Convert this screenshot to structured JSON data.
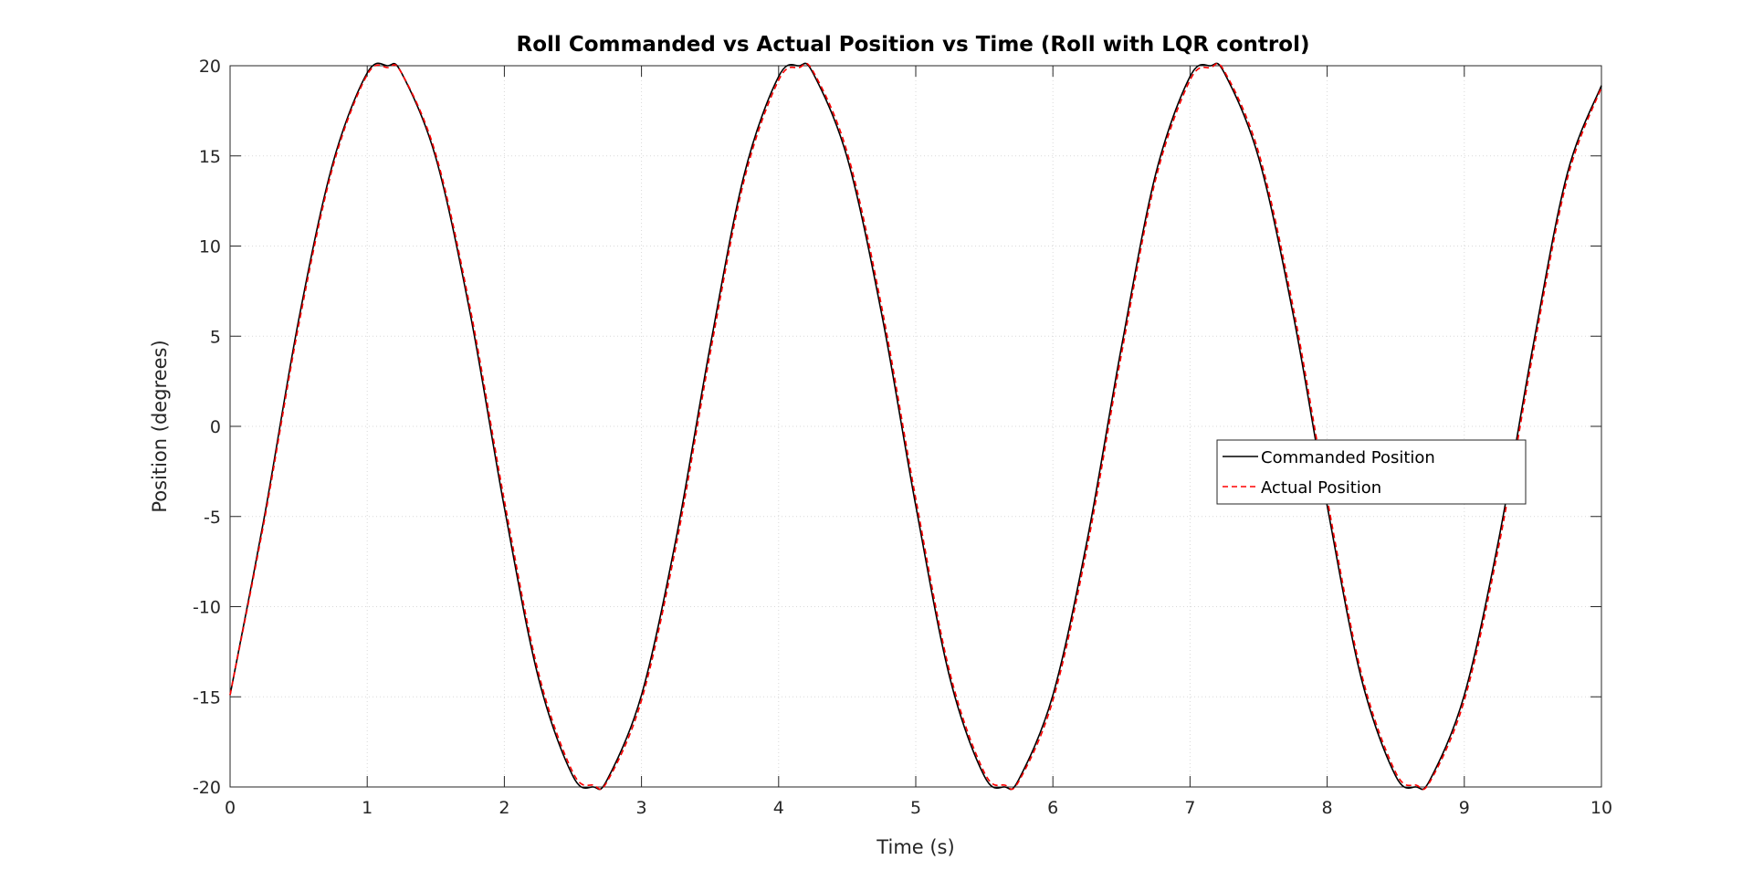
{
  "chart_data": {
    "type": "line",
    "title": "Roll Commanded vs Actual Position vs Time (Roll with LQR control)",
    "xlabel": "Time (s)",
    "ylabel": "Position (degrees)",
    "xlim": [
      0,
      10
    ],
    "ylim": [
      -20,
      20
    ],
    "xticks": [
      0,
      1,
      2,
      3,
      4,
      5,
      6,
      7,
      8,
      9,
      10
    ],
    "yticks": [
      -20,
      -15,
      -10,
      -5,
      0,
      5,
      10,
      15,
      20
    ],
    "xtick_labels": [
      "0",
      "1",
      "2",
      "3",
      "4",
      "5",
      "6",
      "7",
      "8",
      "9",
      "10"
    ],
    "ytick_labels": [
      "-20",
      "-15",
      "-10",
      "-5",
      "0",
      "5",
      "10",
      "15",
      "20"
    ],
    "grid": true,
    "legend_position": "right-center",
    "series": [
      {
        "name": "Commanded Position",
        "color": "#000000",
        "style": "solid",
        "x": [
          0,
          0.25,
          0.5,
          0.75,
          1.0,
          1.15,
          1.25,
          1.5,
          1.75,
          2.0,
          2.25,
          2.5,
          2.65,
          2.75,
          3.0,
          3.25,
          3.5,
          3.75,
          4.0,
          4.15,
          4.25,
          4.5,
          4.75,
          5.0,
          5.25,
          5.5,
          5.65,
          5.75,
          6.0,
          6.25,
          6.5,
          6.75,
          7.0,
          7.15,
          7.25,
          7.5,
          7.75,
          8.0,
          8.25,
          8.5,
          8.65,
          8.75,
          9.0,
          9.25,
          9.5,
          9.75,
          10.0
        ],
        "y": [
          -14.9,
          -5.0,
          5.9,
          14.6,
          19.6,
          20.0,
          19.6,
          14.9,
          6.3,
          -4.5,
          -14.0,
          -19.4,
          -20.0,
          -19.6,
          -14.9,
          -6.3,
          4.4,
          14.0,
          19.4,
          20.0,
          19.6,
          14.9,
          6.3,
          -4.4,
          -14.0,
          -19.4,
          -20.0,
          -19.6,
          -14.9,
          -6.3,
          4.4,
          14.0,
          19.4,
          20.0,
          19.6,
          14.9,
          6.3,
          -4.4,
          -14.0,
          -19.4,
          -20.0,
          -19.6,
          -14.9,
          -6.3,
          4.4,
          14.0,
          18.9
        ]
      },
      {
        "name": "Actual Position",
        "color": "#ff0000",
        "style": "dashed",
        "x": [
          0,
          0.25,
          0.5,
          0.75,
          1.0,
          1.15,
          1.25,
          1.5,
          1.75,
          2.0,
          2.25,
          2.5,
          2.65,
          2.75,
          3.0,
          3.25,
          3.5,
          3.75,
          4.0,
          4.15,
          4.25,
          4.5,
          4.75,
          5.0,
          5.25,
          5.5,
          5.65,
          5.75,
          6.0,
          6.25,
          6.5,
          6.75,
          7.0,
          7.15,
          7.25,
          7.5,
          7.75,
          8.0,
          8.25,
          8.5,
          8.65,
          8.75,
          9.0,
          9.25,
          9.5,
          9.75,
          10.0
        ],
        "y": [
          -14.9,
          -5.2,
          5.6,
          14.4,
          19.5,
          19.9,
          19.6,
          15.1,
          6.6,
          -4.1,
          -13.7,
          -19.2,
          -19.9,
          -19.7,
          -15.2,
          -6.7,
          4.0,
          13.7,
          19.2,
          19.9,
          19.7,
          15.2,
          6.7,
          -4.0,
          -13.7,
          -19.2,
          -19.9,
          -19.7,
          -15.2,
          -6.7,
          4.0,
          13.7,
          19.2,
          19.9,
          19.7,
          15.2,
          6.7,
          -4.0,
          -13.7,
          -19.2,
          -19.9,
          -19.7,
          -15.2,
          -6.7,
          4.0,
          13.7,
          18.8
        ]
      }
    ]
  },
  "legend": {
    "items": [
      {
        "label": "Commanded Position",
        "color": "#000000",
        "dash": "none"
      },
      {
        "label": "Actual Position",
        "color": "#ff0000",
        "dash": "6,4"
      }
    ]
  },
  "colors": {
    "axis": "#262626",
    "grid": "#d9d9d9",
    "background": "#ffffff"
  }
}
